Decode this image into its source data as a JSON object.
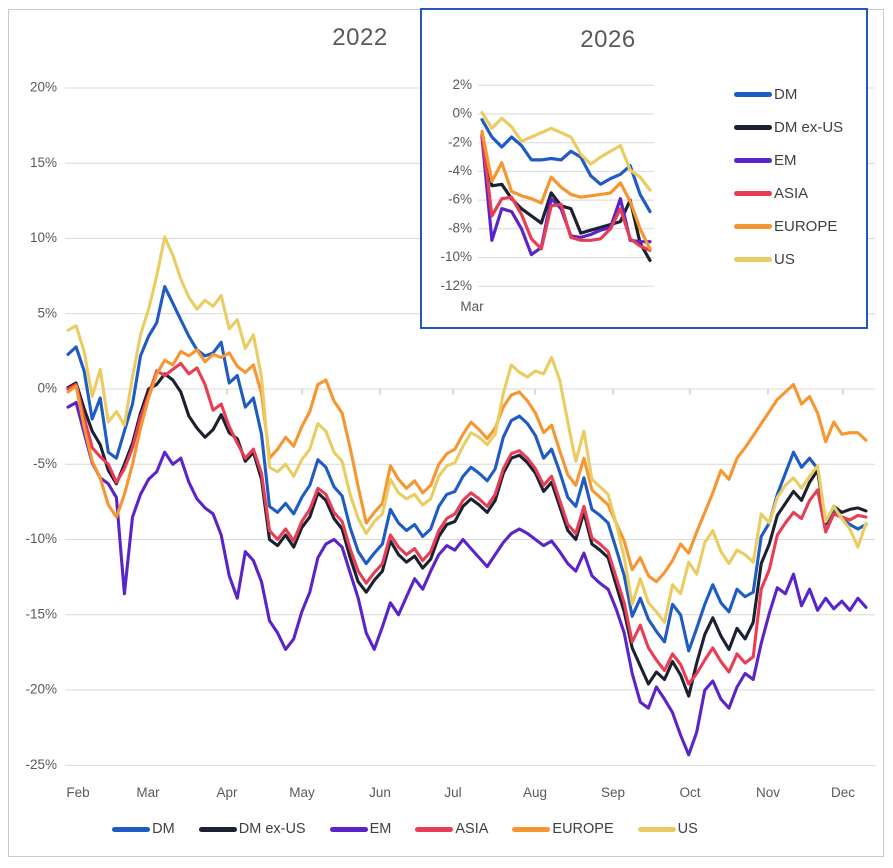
{
  "page": {
    "background": "#ffffff",
    "frame_border_color": "#cbcbcb",
    "inset_border_color": "#2456c0",
    "grid_color": "#d9d9d9",
    "tick_color": "#b5b5b5",
    "label_color": "#595959",
    "legend_text_color": "#404040"
  },
  "chart_data": [
    {
      "id": "main-2022",
      "type": "line",
      "title": "2022",
      "xlabel": "",
      "ylabel": "",
      "ylim": [
        -25,
        20
      ],
      "grid": true,
      "legend_position": "bottom",
      "y_ticks": [
        20,
        15,
        10,
        5,
        0,
        -5,
        -10,
        -15,
        -20,
        -25
      ],
      "y_tick_labels": [
        "20%",
        "15%",
        "10%",
        "5%",
        "0%",
        "-5%",
        "-10%",
        "-15%",
        "-20%",
        "-25%"
      ],
      "x_tick_labels": [
        "Feb",
        "Mar",
        "Apr",
        "May",
        "Jun",
        "Jul",
        "Aug",
        "Sep",
        "Oct",
        "Nov",
        "Dec"
      ],
      "series": [
        {
          "name": "DM",
          "color": "#1f5bc4",
          "values": [
            2.3,
            2.8,
            1.2,
            -2.0,
            -0.6,
            -4.2,
            -4.6,
            -2.8,
            -1.0,
            2.2,
            3.5,
            4.4,
            6.8,
            5.7,
            4.6,
            3.5,
            2.6,
            2.2,
            2.4,
            3.1,
            0.4,
            0.9,
            -1.2,
            -0.6,
            -3.0,
            -7.8,
            -8.2,
            -7.6,
            -8.3,
            -7.2,
            -6.4,
            -4.7,
            -5.2,
            -6.5,
            -7.1,
            -9.2,
            -10.8,
            -11.6,
            -10.9,
            -10.3,
            -8.0,
            -8.9,
            -9.4,
            -9.0,
            -9.8,
            -9.3,
            -7.8,
            -7.0,
            -6.8,
            -5.8,
            -5.2,
            -5.6,
            -6.1,
            -5.3,
            -3.2,
            -2.1,
            -1.8,
            -2.3,
            -3.1,
            -4.6,
            -4.0,
            -5.5,
            -7.2,
            -7.8,
            -5.9,
            -8.0,
            -8.4,
            -8.9,
            -10.6,
            -12.4,
            -15.1,
            -13.9,
            -15.3,
            -16.1,
            -16.8,
            -14.3,
            -15.0,
            -17.4,
            -15.9,
            -14.3,
            -13.0,
            -14.2,
            -14.8,
            -13.3,
            -13.8,
            -13.5,
            -9.8,
            -8.9,
            -7.0,
            -5.6,
            -4.2,
            -5.2,
            -4.6,
            -5.3,
            -9.0,
            -8.0,
            -8.6,
            -9.0,
            -9.3,
            -9.0
          ]
        },
        {
          "name": "DM ex-US",
          "color": "#1b2130",
          "values": [
            0.1,
            0.4,
            -1.3,
            -2.8,
            -3.7,
            -5.4,
            -6.3,
            -5.0,
            -3.6,
            -1.6,
            0.0,
            0.3,
            1.0,
            0.6,
            -0.2,
            -1.8,
            -2.6,
            -3.2,
            -2.7,
            -1.7,
            -2.9,
            -3.3,
            -4.8,
            -4.2,
            -6.0,
            -10.0,
            -10.4,
            -9.7,
            -10.5,
            -9.2,
            -8.5,
            -6.9,
            -7.4,
            -8.6,
            -9.3,
            -11.2,
            -12.8,
            -13.5,
            -12.7,
            -12.1,
            -10.1,
            -11.0,
            -11.5,
            -11.1,
            -11.9,
            -11.3,
            -9.8,
            -9.0,
            -8.8,
            -7.8,
            -7.3,
            -7.7,
            -8.2,
            -7.4,
            -5.6,
            -4.6,
            -4.4,
            -4.9,
            -5.6,
            -6.8,
            -6.2,
            -7.8,
            -9.4,
            -10.0,
            -8.2,
            -10.3,
            -10.7,
            -11.2,
            -13.0,
            -14.8,
            -17.2,
            -18.4,
            -19.6,
            -18.8,
            -19.3,
            -18.1,
            -19.0,
            -20.4,
            -18.2,
            -16.3,
            -15.2,
            -16.4,
            -17.3,
            -15.9,
            -16.6,
            -15.5,
            -11.6,
            -10.3,
            -8.4,
            -7.6,
            -6.8,
            -7.4,
            -6.2,
            -5.4,
            -8.9,
            -7.8,
            -8.2,
            -8.0,
            -7.9,
            -8.1
          ]
        },
        {
          "name": "EM",
          "color": "#5b24c9",
          "values": [
            -1.2,
            -0.9,
            -2.9,
            -4.9,
            -5.9,
            -6.3,
            -7.2,
            -13.6,
            -8.5,
            -7.0,
            -6.0,
            -5.5,
            -4.2,
            -5.0,
            -4.6,
            -6.2,
            -7.3,
            -7.9,
            -8.3,
            -9.7,
            -12.4,
            -13.9,
            -10.8,
            -11.4,
            -12.8,
            -15.4,
            -16.2,
            -17.3,
            -16.6,
            -14.8,
            -13.5,
            -11.2,
            -10.3,
            -10.0,
            -10.5,
            -12.2,
            -13.9,
            -16.2,
            -17.3,
            -15.8,
            -14.2,
            -15.0,
            -13.8,
            -12.6,
            -13.3,
            -12.1,
            -11.0,
            -10.4,
            -10.7,
            -10.0,
            -10.6,
            -11.2,
            -11.8,
            -11.0,
            -10.2,
            -9.6,
            -9.3,
            -9.6,
            -10.0,
            -10.4,
            -10.1,
            -10.8,
            -11.6,
            -12.1,
            -10.9,
            -12.4,
            -12.9,
            -13.3,
            -14.6,
            -16.2,
            -18.9,
            -20.8,
            -21.2,
            -19.8,
            -20.6,
            -21.5,
            -23.0,
            -24.3,
            -22.8,
            -20.0,
            -19.4,
            -20.6,
            -21.2,
            -19.8,
            -18.9,
            -19.3,
            -16.9,
            -14.9,
            -13.2,
            -13.6,
            -12.3,
            -14.4,
            -13.3,
            -14.7,
            -13.9,
            -14.6,
            -14.1,
            -14.7,
            -13.9,
            -14.5
          ]
        },
        {
          "name": "ASIA",
          "color": "#e83e55",
          "values": [
            0.0,
            0.3,
            -1.9,
            -3.9,
            -4.5,
            -5.0,
            -6.2,
            -5.3,
            -3.9,
            -1.9,
            -0.4,
            1.2,
            0.9,
            1.3,
            1.7,
            1.0,
            1.4,
            0.3,
            -1.4,
            -1.0,
            -2.5,
            -3.6,
            -4.6,
            -4.0,
            -5.6,
            -9.4,
            -10.0,
            -9.3,
            -10.1,
            -8.8,
            -8.0,
            -6.6,
            -7.0,
            -8.2,
            -8.8,
            -10.6,
            -12.1,
            -12.9,
            -12.2,
            -11.6,
            -9.7,
            -10.5,
            -11.0,
            -10.6,
            -11.4,
            -10.8,
            -9.4,
            -8.6,
            -8.3,
            -7.4,
            -6.9,
            -7.3,
            -7.8,
            -7.0,
            -5.3,
            -4.3,
            -4.1,
            -4.6,
            -5.3,
            -6.4,
            -5.8,
            -7.4,
            -9.0,
            -9.6,
            -7.8,
            -9.9,
            -10.3,
            -10.8,
            -12.5,
            -14.2,
            -16.8,
            -15.7,
            -17.2,
            -18.0,
            -18.7,
            -17.6,
            -18.3,
            -19.6,
            -18.9,
            -18.0,
            -17.2,
            -18.1,
            -18.8,
            -17.6,
            -18.2,
            -17.8,
            -13.3,
            -12.0,
            -9.7,
            -8.9,
            -8.2,
            -8.6,
            -7.4,
            -6.7,
            -9.5,
            -8.3,
            -8.5,
            -8.7,
            -8.4,
            -8.5
          ]
        },
        {
          "name": "EUROPE",
          "color": "#f79530",
          "values": [
            -0.2,
            0.2,
            -2.5,
            -4.8,
            -5.9,
            -7.7,
            -8.5,
            -7.0,
            -5.0,
            -2.6,
            -0.6,
            1.0,
            1.9,
            1.6,
            2.5,
            2.2,
            2.6,
            1.8,
            2.3,
            2.1,
            2.4,
            1.5,
            1.1,
            1.6,
            -0.3,
            -4.6,
            -4.0,
            -3.2,
            -3.8,
            -2.5,
            -1.5,
            0.3,
            0.6,
            -0.8,
            -1.6,
            -3.9,
            -6.5,
            -8.9,
            -8.2,
            -7.6,
            -5.1,
            -6.0,
            -6.6,
            -6.1,
            -6.9,
            -6.4,
            -5.0,
            -4.3,
            -4.0,
            -3.0,
            -2.2,
            -2.7,
            -3.3,
            -2.6,
            -1.2,
            -0.4,
            -0.2,
            -0.8,
            -1.6,
            -2.9,
            -2.4,
            -4.1,
            -5.7,
            -6.4,
            -4.6,
            -6.7,
            -7.2,
            -7.7,
            -8.9,
            -10.1,
            -12.0,
            -11.2,
            -12.4,
            -12.8,
            -12.2,
            -11.4,
            -10.3,
            -10.9,
            -9.5,
            -8.2,
            -6.9,
            -5.4,
            -6.0,
            -4.6,
            -3.9,
            -3.1,
            -2.3,
            -1.5,
            -0.7,
            -0.2,
            0.3,
            -1.0,
            -0.5,
            -1.6,
            -3.5,
            -2.2,
            -3.0,
            -2.9,
            -2.9,
            -3.4
          ]
        },
        {
          "name": "US",
          "color": "#e9cd62",
          "values": [
            3.9,
            4.2,
            2.5,
            -0.5,
            1.3,
            -2.2,
            -1.5,
            -2.4,
            0.8,
            3.6,
            5.3,
            7.5,
            10.1,
            8.9,
            7.3,
            6.1,
            5.3,
            5.9,
            5.5,
            6.2,
            4.0,
            4.6,
            2.7,
            3.6,
            0.8,
            -5.2,
            -5.5,
            -5.0,
            -5.8,
            -4.7,
            -4.0,
            -2.3,
            -2.8,
            -4.2,
            -4.8,
            -7.0,
            -8.6,
            -9.6,
            -8.8,
            -8.3,
            -6.0,
            -6.9,
            -7.3,
            -7.0,
            -7.7,
            -7.3,
            -5.8,
            -5.1,
            -4.9,
            -3.8,
            -2.9,
            -3.2,
            -3.7,
            -3.0,
            -0.3,
            1.6,
            1.1,
            0.8,
            1.2,
            1.0,
            2.1,
            0.6,
            -2.2,
            -4.8,
            -2.8,
            -6.0,
            -6.5,
            -7.0,
            -8.9,
            -11.2,
            -14.3,
            -12.6,
            -14.2,
            -14.8,
            -15.5,
            -13.0,
            -13.6,
            -11.5,
            -12.3,
            -10.2,
            -9.4,
            -10.8,
            -11.6,
            -10.7,
            -11.0,
            -11.5,
            -8.3,
            -8.9,
            -7.2,
            -6.4,
            -5.9,
            -6.6,
            -5.8,
            -5.1,
            -8.8,
            -7.8,
            -8.6,
            -9.3,
            -10.5,
            -8.9
          ]
        }
      ]
    },
    {
      "id": "inset-2026",
      "type": "line",
      "title": "2026",
      "xlabel": "",
      "ylabel": "",
      "ylim": [
        -12,
        2
      ],
      "grid": true,
      "legend_position": "right",
      "y_ticks": [
        2,
        0,
        -2,
        -4,
        -6,
        -8,
        -10,
        -12
      ],
      "y_tick_labels": [
        "2%",
        "0%",
        "-2%",
        "-4%",
        "-6%",
        "-8%",
        "-10%",
        "-12%"
      ],
      "x_tick_labels": [
        "Mar"
      ],
      "series": [
        {
          "name": "DM",
          "color": "#1f5bc4",
          "values": [
            -0.4,
            -1.6,
            -2.3,
            -1.6,
            -2.2,
            -3.2,
            -3.2,
            -3.1,
            -3.2,
            -2.6,
            -3.0,
            -4.3,
            -4.9,
            -4.5,
            -4.2,
            -3.6,
            -5.6,
            -6.8
          ]
        },
        {
          "name": "DM ex-US",
          "color": "#1b2130",
          "values": [
            -1.5,
            -5.0,
            -4.9,
            -5.9,
            -6.6,
            -7.1,
            -7.6,
            -5.5,
            -6.4,
            -6.6,
            -8.3,
            -8.1,
            -7.9,
            -7.7,
            -7.5,
            -6.0,
            -9.0,
            -10.2
          ]
        },
        {
          "name": "EM",
          "color": "#5b24c9",
          "values": [
            -1.6,
            -8.8,
            -6.6,
            -6.8,
            -8.0,
            -9.8,
            -9.3,
            -5.9,
            -6.6,
            -8.5,
            -8.6,
            -8.4,
            -8.1,
            -7.9,
            -5.9,
            -8.8,
            -8.9,
            -8.9
          ]
        },
        {
          "name": "ASIA",
          "color": "#e83e55",
          "values": [
            -1.4,
            -7.1,
            -5.9,
            -5.8,
            -7.0,
            -8.7,
            -9.4,
            -6.4,
            -6.3,
            -8.6,
            -8.8,
            -8.8,
            -8.7,
            -8.0,
            -6.6,
            -8.7,
            -9.2,
            -9.5
          ]
        },
        {
          "name": "EUROPE",
          "color": "#f79530",
          "values": [
            -1.2,
            -4.7,
            -3.4,
            -5.4,
            -5.7,
            -5.9,
            -6.2,
            -4.4,
            -5.1,
            -5.6,
            -5.8,
            -5.7,
            -5.6,
            -5.5,
            -4.8,
            -6.1,
            -8.0,
            -9.4
          ]
        },
        {
          "name": "US",
          "color": "#e9cd62",
          "values": [
            0.1,
            -1.0,
            -0.3,
            -0.9,
            -1.9,
            -1.6,
            -1.3,
            -1.0,
            -1.3,
            -1.6,
            -2.8,
            -3.5,
            -3.0,
            -2.6,
            -2.2,
            -3.9,
            -4.4,
            -5.3
          ]
        }
      ]
    }
  ]
}
